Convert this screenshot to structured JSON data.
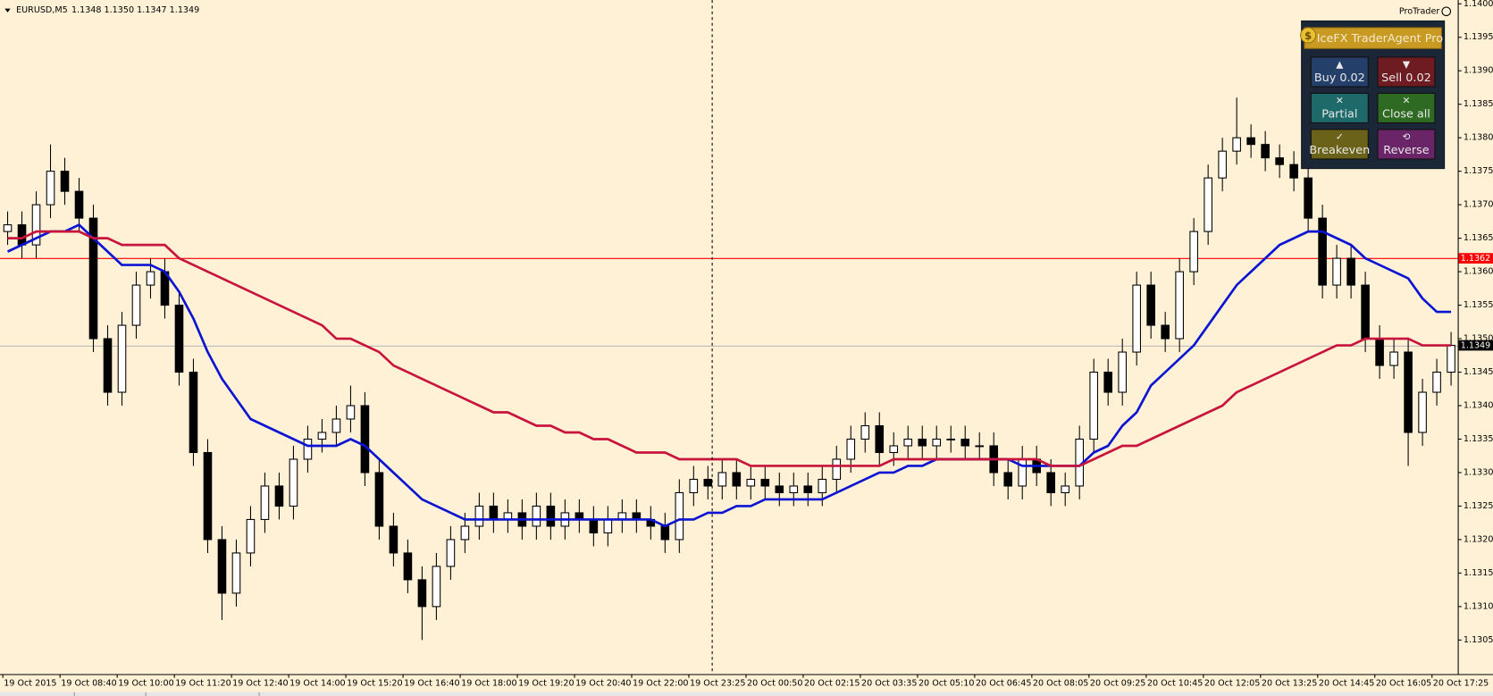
{
  "header": {
    "symbol": "EURUSD,M5",
    "quote": "1.1348 1.1350 1.1347 1.1349",
    "brand": "ProTrader"
  },
  "panel": {
    "title": "IceFX TraderAgent Pro",
    "buttons": [
      "Buy 0.02",
      "Sell 0.02",
      "Partial",
      "Close all",
      "Breakeven",
      "Reverse"
    ]
  },
  "chart_data": {
    "type": "candlestick",
    "categories": [
      "19 Oct 2015",
      null,
      null,
      null,
      "19 Oct 08:40",
      null,
      null,
      null,
      "19 Oct 10:00",
      null,
      null,
      null,
      "19 Oct 11:20",
      null,
      null,
      null,
      "19 Oct 12:40",
      null,
      null,
      null,
      "19 Oct 14:00",
      null,
      null,
      null,
      "19 Oct 15:20",
      null,
      null,
      null,
      "19 Oct 16:40",
      null,
      null,
      null,
      "19 Oct 18:00",
      null,
      null,
      null,
      "19 Oct 19:20",
      null,
      null,
      null,
      "19 Oct 20:40",
      null,
      null,
      null,
      "19 Oct 22:00",
      null,
      null,
      null,
      "19 Oct 23:25",
      null,
      null,
      null,
      "20 Oct 00:50",
      null,
      null,
      null,
      "20 Oct 02:15",
      null,
      null,
      null,
      "20 Oct 03:35",
      null,
      null,
      null,
      "20 Oct 05:10",
      null,
      null,
      null,
      "20 Oct 06:45",
      null,
      null,
      null,
      "20 Oct 08:05",
      null,
      null,
      null,
      "20 Oct 09:25",
      null,
      null,
      null,
      "20 Oct 10:45",
      null,
      null,
      null,
      "20 Oct 12:05",
      null,
      null,
      null,
      "20 Oct 13:25",
      null,
      null,
      null,
      "20 Oct 14:45",
      null,
      null,
      null,
      "20 Oct 16:05",
      null,
      null,
      null,
      "20 Oct 17:25",
      null
    ],
    "open": [
      1.1366,
      1.1367,
      1.1364,
      1.137,
      1.1375,
      1.1372,
      1.1368,
      1.135,
      1.1342,
      1.1352,
      1.1358,
      1.136,
      1.1355,
      1.1345,
      1.1333,
      1.132,
      1.1312,
      1.1318,
      1.1323,
      1.1328,
      1.1325,
      1.1332,
      1.1335,
      1.1336,
      1.1338,
      1.134,
      1.133,
      1.1322,
      1.1318,
      1.1314,
      1.131,
      1.1316,
      1.132,
      1.1322,
      1.1325,
      1.1323,
      1.1324,
      1.1322,
      1.1325,
      1.1322,
      1.1324,
      1.1323,
      1.1321,
      1.1323,
      1.1324,
      1.1323,
      1.1322,
      1.132,
      1.1327,
      1.1329,
      1.1328,
      1.133,
      1.1328,
      1.1329,
      1.1328,
      1.1327,
      1.1328,
      1.1327,
      1.1329,
      1.1332,
      1.1335,
      1.1337,
      1.1333,
      1.1334,
      1.1335,
      1.1334,
      1.1335,
      1.1335,
      1.1334,
      1.1334,
      1.133,
      1.1328,
      1.1332,
      1.133,
      1.1327,
      1.1328,
      1.1335,
      1.1345,
      1.1342,
      1.1348,
      1.1358,
      1.1352,
      1.135,
      1.136,
      1.1366,
      1.1374,
      1.1378,
      1.138,
      1.1379,
      1.1377,
      1.1376,
      1.1374,
      1.1368,
      1.1358,
      1.1362,
      1.1358,
      1.135,
      1.1346,
      1.1348,
      1.1336,
      1.1342,
      1.1345
    ],
    "high": [
      1.1369,
      1.1369,
      1.1372,
      1.1379,
      1.1377,
      1.1374,
      1.137,
      1.1352,
      1.1354,
      1.136,
      1.1362,
      1.1362,
      1.1357,
      1.1347,
      1.1335,
      1.1322,
      1.132,
      1.1325,
      1.133,
      1.133,
      1.1334,
      1.1337,
      1.1338,
      1.134,
      1.1343,
      1.1342,
      1.1332,
      1.1324,
      1.132,
      1.1316,
      1.1318,
      1.1322,
      1.1324,
      1.1327,
      1.1327,
      1.1326,
      1.1326,
      1.1327,
      1.1327,
      1.1326,
      1.1326,
      1.1325,
      1.1325,
      1.1326,
      1.1326,
      1.1325,
      1.1324,
      1.1329,
      1.1331,
      1.1331,
      1.1332,
      1.1332,
      1.1331,
      1.1331,
      1.133,
      1.133,
      1.133,
      1.1331,
      1.1334,
      1.1337,
      1.1339,
      1.1339,
      1.1336,
      1.1337,
      1.1337,
      1.1337,
      1.1337,
      1.1337,
      1.1336,
      1.1336,
      1.1332,
      1.1334,
      1.1334,
      1.1332,
      1.133,
      1.1337,
      1.1347,
      1.1347,
      1.135,
      1.136,
      1.136,
      1.1354,
      1.1362,
      1.1368,
      1.1376,
      1.138,
      1.1386,
      1.1382,
      1.1381,
      1.1379,
      1.1378,
      1.1376,
      1.137,
      1.1364,
      1.1364,
      1.136,
      1.1352,
      1.135,
      1.135,
      1.1344,
      1.1347,
      1.1351
    ],
    "low": [
      1.1364,
      1.1362,
      1.1362,
      1.1368,
      1.137,
      1.1366,
      1.1348,
      1.134,
      1.134,
      1.135,
      1.1356,
      1.1353,
      1.1343,
      1.1331,
      1.1318,
      1.1308,
      1.131,
      1.1316,
      1.1321,
      1.1323,
      1.1323,
      1.133,
      1.1333,
      1.1334,
      1.1336,
      1.1328,
      1.132,
      1.1316,
      1.1312,
      1.1305,
      1.1308,
      1.1314,
      1.1318,
      1.132,
      1.1321,
      1.1321,
      1.132,
      1.132,
      1.132,
      1.132,
      1.1321,
      1.1319,
      1.1319,
      1.1321,
      1.1321,
      1.132,
      1.1318,
      1.1318,
      1.1325,
      1.1326,
      1.1326,
      1.1326,
      1.1326,
      1.1326,
      1.1325,
      1.1325,
      1.1325,
      1.1325,
      1.1327,
      1.133,
      1.1333,
      1.1331,
      1.1331,
      1.1332,
      1.1332,
      1.1332,
      1.1333,
      1.1332,
      1.1332,
      1.1328,
      1.1326,
      1.1326,
      1.1328,
      1.1325,
      1.1325,
      1.1326,
      1.1333,
      1.134,
      1.134,
      1.1346,
      1.135,
      1.1348,
      1.1348,
      1.1358,
      1.1364,
      1.1372,
      1.1376,
      1.1377,
      1.1375,
      1.1374,
      1.1372,
      1.1366,
      1.1356,
      1.1356,
      1.1356,
      1.1348,
      1.1344,
      1.1344,
      1.1331,
      1.1334,
      1.134,
      1.1343
    ],
    "close": [
      1.1367,
      1.1364,
      1.137,
      1.1375,
      1.1372,
      1.1368,
      1.135,
      1.1342,
      1.1352,
      1.1358,
      1.136,
      1.1355,
      1.1345,
      1.1333,
      1.132,
      1.1312,
      1.1318,
      1.1323,
      1.1328,
      1.1325,
      1.1332,
      1.1335,
      1.1336,
      1.1338,
      1.134,
      1.133,
      1.1322,
      1.1318,
      1.1314,
      1.131,
      1.1316,
      1.132,
      1.1322,
      1.1325,
      1.1323,
      1.1324,
      1.1322,
      1.1325,
      1.1322,
      1.1324,
      1.1323,
      1.1321,
      1.1323,
      1.1324,
      1.1323,
      1.1322,
      1.132,
      1.1327,
      1.1329,
      1.1328,
      1.133,
      1.1328,
      1.1329,
      1.1328,
      1.1327,
      1.1328,
      1.1327,
      1.1329,
      1.1332,
      1.1335,
      1.1337,
      1.1333,
      1.1334,
      1.1335,
      1.1334,
      1.1335,
      1.1335,
      1.1334,
      1.1334,
      1.133,
      1.1328,
      1.1332,
      1.133,
      1.1327,
      1.1328,
      1.1335,
      1.1345,
      1.1342,
      1.1348,
      1.1358,
      1.1352,
      1.135,
      1.136,
      1.1366,
      1.1374,
      1.1378,
      1.138,
      1.1379,
      1.1377,
      1.1376,
      1.1374,
      1.1368,
      1.1358,
      1.1362,
      1.1358,
      1.135,
      1.1346,
      1.1348,
      1.1336,
      1.1342,
      1.1345,
      1.1349
    ],
    "ma_lines": [
      {
        "color": "#0a14d2",
        "values": [
          1.1363,
          1.1364,
          1.1365,
          1.1366,
          1.1366,
          1.1367,
          1.1365,
          1.1363,
          1.1361,
          1.1361,
          1.1361,
          1.136,
          1.1357,
          1.1353,
          1.1348,
          1.1344,
          1.1341,
          1.1338,
          1.1337,
          1.1336,
          1.1335,
          1.1334,
          1.1334,
          1.1334,
          1.1335,
          1.1334,
          1.1332,
          1.133,
          1.1328,
          1.1326,
          1.1325,
          1.1324,
          1.1323,
          1.1323,
          1.1323,
          1.1323,
          1.1323,
          1.1323,
          1.1323,
          1.1323,
          1.1323,
          1.1323,
          1.1323,
          1.1323,
          1.1323,
          1.1323,
          1.1322,
          1.1323,
          1.1323,
          1.1324,
          1.1324,
          1.1325,
          1.1325,
          1.1326,
          1.1326,
          1.1326,
          1.1326,
          1.1326,
          1.1327,
          1.1328,
          1.1329,
          1.133,
          1.133,
          1.1331,
          1.1331,
          1.1332,
          1.1332,
          1.1332,
          1.1332,
          1.1332,
          1.1332,
          1.1331,
          1.1331,
          1.1331,
          1.1331,
          1.1331,
          1.1333,
          1.1334,
          1.1337,
          1.1339,
          1.1343,
          1.1345,
          1.1347,
          1.1349,
          1.1352,
          1.1355,
          1.1358,
          1.136,
          1.1362,
          1.1364,
          1.1365,
          1.1366,
          1.1366,
          1.1365,
          1.1364,
          1.1362,
          1.1361,
          1.136,
          1.1359,
          1.1356,
          1.1354,
          1.1354
        ]
      },
      {
        "color": "#c8143c",
        "values": [
          1.1365,
          1.1365,
          1.1366,
          1.1366,
          1.1366,
          1.1366,
          1.1365,
          1.1365,
          1.1364,
          1.1364,
          1.1364,
          1.1364,
          1.1362,
          1.1361,
          1.136,
          1.1359,
          1.1358,
          1.1357,
          1.1356,
          1.1355,
          1.1354,
          1.1353,
          1.1352,
          1.135,
          1.135,
          1.1349,
          1.1348,
          1.1346,
          1.1345,
          1.1344,
          1.1343,
          1.1342,
          1.1341,
          1.134,
          1.1339,
          1.1339,
          1.1338,
          1.1337,
          1.1337,
          1.1336,
          1.1336,
          1.1335,
          1.1335,
          1.1334,
          1.1333,
          1.1333,
          1.1333,
          1.1332,
          1.1332,
          1.1332,
          1.1332,
          1.1332,
          1.1331,
          1.1331,
          1.1331,
          1.1331,
          1.1331,
          1.1331,
          1.1331,
          1.1331,
          1.1331,
          1.1331,
          1.1332,
          1.1332,
          1.1332,
          1.1332,
          1.1332,
          1.1332,
          1.1332,
          1.1332,
          1.1332,
          1.1332,
          1.1332,
          1.1331,
          1.1331,
          1.1331,
          1.1332,
          1.1333,
          1.1334,
          1.1334,
          1.1335,
          1.1336,
          1.1337,
          1.1338,
          1.1339,
          1.134,
          1.1342,
          1.1343,
          1.1344,
          1.1345,
          1.1346,
          1.1347,
          1.1348,
          1.1349,
          1.1349,
          1.135,
          1.135,
          1.135,
          1.135,
          1.1349,
          1.1349,
          1.1349
        ]
      }
    ],
    "price_lines": [
      {
        "value": 1.1362,
        "color": "#ff0000",
        "label_color": "#ff0000"
      },
      {
        "value": 1.1349,
        "color": "#b4b4b4",
        "label_color": "#000000"
      }
    ],
    "ylim": [
      1.13,
      1.14
    ],
    "yticks": [
      1.1305,
      {
        "value": 1.131,
        "label": "1.1310"
      },
      1.1315,
      {
        "value": 1.132,
        "label": "1.1320"
      },
      1.1325,
      {
        "value": 1.133,
        "label": "1.1330"
      },
      1.1335,
      {
        "value": 1.134,
        "label": "1.1340"
      },
      1.1345,
      {
        "value": 1.135,
        "label": "1.1350"
      },
      1.1355,
      {
        "value": 1.136,
        "label": "1.1360"
      },
      1.1365,
      {
        "value": 1.137,
        "label": "1.1370"
      },
      1.1375,
      {
        "value": 1.138,
        "label": "1.1380"
      },
      1.1385,
      {
        "value": 1.139,
        "label": "1.1390"
      },
      1.1395,
      {
        "value": 1.14,
        "label": "1.1400"
      }
    ],
    "grid": false
  }
}
